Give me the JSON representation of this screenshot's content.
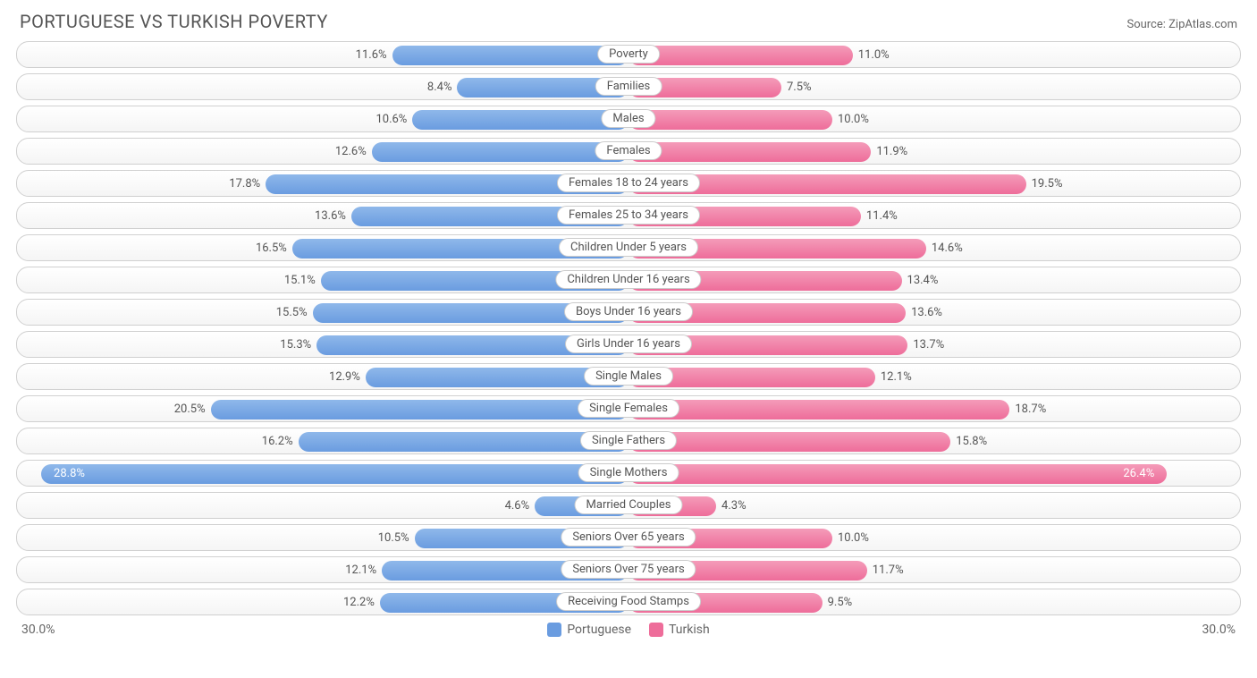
{
  "chart": {
    "type": "diverging-bar",
    "title": "PORTUGUESE VS TURKISH POVERTY",
    "source_label": "Source: ZipAtlas.com",
    "background_color": "#ffffff",
    "row_border_color": "#d0d0d0",
    "row_bg_gradient": [
      "#ffffff",
      "#f5f5f5"
    ],
    "left": {
      "name": "Portuguese",
      "color_gradient": [
        "#8fb8ea",
        "#6a9ce0"
      ],
      "swatch_color": "#6a9ce0",
      "axis_max": 30.0,
      "axis_label": "30.0%"
    },
    "right": {
      "name": "Turkish",
      "color_gradient": [
        "#f49bb9",
        "#ee6d9a"
      ],
      "swatch_color": "#ee6d9a",
      "axis_max": 30.0,
      "axis_label": "30.0%"
    },
    "title_fontsize": 20,
    "label_fontsize": 13,
    "text_color": "#555555",
    "rows": [
      {
        "category": "Poverty",
        "left_val": 11.6,
        "right_val": 11.0
      },
      {
        "category": "Families",
        "left_val": 8.4,
        "right_val": 7.5
      },
      {
        "category": "Males",
        "left_val": 10.6,
        "right_val": 10.0
      },
      {
        "category": "Females",
        "left_val": 12.6,
        "right_val": 11.9
      },
      {
        "category": "Females 18 to 24 years",
        "left_val": 17.8,
        "right_val": 19.5
      },
      {
        "category": "Females 25 to 34 years",
        "left_val": 13.6,
        "right_val": 11.4
      },
      {
        "category": "Children Under 5 years",
        "left_val": 16.5,
        "right_val": 14.6
      },
      {
        "category": "Children Under 16 years",
        "left_val": 15.1,
        "right_val": 13.4
      },
      {
        "category": "Boys Under 16 years",
        "left_val": 15.5,
        "right_val": 13.6
      },
      {
        "category": "Girls Under 16 years",
        "left_val": 15.3,
        "right_val": 13.7
      },
      {
        "category": "Single Males",
        "left_val": 12.9,
        "right_val": 12.1
      },
      {
        "category": "Single Females",
        "left_val": 20.5,
        "right_val": 18.7
      },
      {
        "category": "Single Fathers",
        "left_val": 16.2,
        "right_val": 15.8
      },
      {
        "category": "Single Mothers",
        "left_val": 28.8,
        "right_val": 26.4
      },
      {
        "category": "Married Couples",
        "left_val": 4.6,
        "right_val": 4.3
      },
      {
        "category": "Seniors Over 65 years",
        "left_val": 10.5,
        "right_val": 10.0
      },
      {
        "category": "Seniors Over 75 years",
        "left_val": 12.1,
        "right_val": 11.7
      },
      {
        "category": "Receiving Food Stamps",
        "left_val": 12.2,
        "right_val": 9.5
      }
    ],
    "inside_label_threshold_pct": 85
  }
}
